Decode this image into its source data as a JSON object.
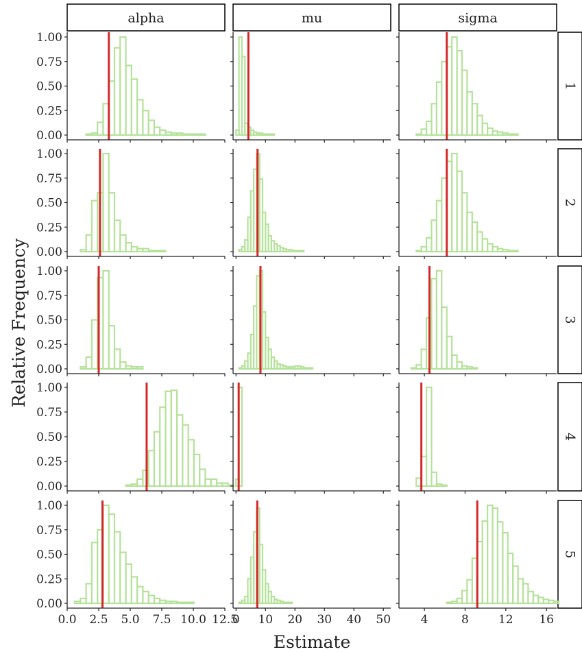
{
  "chart_data": {
    "type": "histogram-facet-grid",
    "xlabel": "Estimate",
    "ylabel": "Relative Frequency",
    "col_facets": [
      "alpha",
      "mu",
      "sigma"
    ],
    "row_facets": [
      "1",
      "2",
      "3",
      "4",
      "5"
    ],
    "y_ticks": [
      "0.00",
      "0.25",
      "0.50",
      "0.75",
      "1.00"
    ],
    "ylim": [
      0,
      1
    ],
    "bar_color": "#b5e29a",
    "line_color": "#d62728",
    "x_axes": [
      {
        "xlim": [
          0,
          12.5
        ],
        "ticks": [
          0,
          2.5,
          5,
          7.5,
          10,
          12.5
        ],
        "labels": [
          "0.0",
          "2.5",
          "5.0",
          "7.5",
          "10.0",
          "12.5"
        ]
      },
      {
        "xlim": [
          -1,
          52.5
        ],
        "ticks": [
          0,
          10,
          20,
          30,
          40,
          50
        ],
        "labels": [
          "0",
          "10",
          "20",
          "30",
          "40",
          "50"
        ]
      },
      {
        "xlim": [
          1.5,
          17
        ],
        "ticks": [
          4,
          8,
          12,
          16
        ],
        "labels": [
          "4",
          "8",
          "12",
          "16"
        ]
      }
    ],
    "panels": [
      [
        {
          "start": 0.6,
          "width": 0.45,
          "values": [
            0.0,
            0.0,
            0.01,
            0.02,
            0.13,
            0.32,
            0.55,
            0.89,
            1.0,
            0.71,
            0.57,
            0.36,
            0.25,
            0.15,
            0.08,
            0.05,
            0.03,
            0.02,
            0.02,
            0.01,
            0.01,
            0.01,
            0.01,
            0.0,
            0.0,
            0.0
          ],
          "line": 3.3
        },
        {
          "start": 0.0,
          "width": 1.0,
          "values": [
            0.05,
            1.0,
            0.8,
            0.12,
            0.08,
            0.05,
            0.03,
            0.02,
            0.02,
            0.01,
            0.01,
            0.01,
            0.01,
            0.0,
            0.0,
            0.0,
            0.0,
            0.0,
            0.0,
            0.0,
            0.0,
            0.0,
            0.0,
            0.0,
            0.0,
            0.0,
            0.0,
            0.0,
            0.0,
            0.0,
            0.0,
            0.0,
            0.0,
            0.0,
            0.0,
            0.0,
            0.0,
            0.0,
            0.0,
            0.0,
            0.0,
            0.0,
            0.0,
            0.0,
            0.0,
            0.0,
            0.0,
            0.0,
            0.0,
            0.0
          ],
          "line": 4.2
        },
        {
          "start": 2.2,
          "width": 0.5,
          "values": [
            0.0,
            0.0,
            0.01,
            0.06,
            0.14,
            0.32,
            0.54,
            0.75,
            0.9,
            1.0,
            0.86,
            0.66,
            0.44,
            0.32,
            0.2,
            0.12,
            0.07,
            0.04,
            0.03,
            0.02,
            0.01,
            0.01,
            0.0,
            0.0,
            0.0,
            0.0,
            0.0,
            0.0
          ],
          "line": 6.2
        }
      ],
      [
        {
          "start": 0.6,
          "width": 0.45,
          "values": [
            0.0,
            0.02,
            0.17,
            0.52,
            0.6,
            1.0,
            0.6,
            0.32,
            0.17,
            0.09,
            0.05,
            0.03,
            0.03,
            0.01,
            0.01,
            0.01,
            0.0,
            0.0,
            0.0,
            0.0,
            0.0,
            0.0,
            0.0,
            0.0,
            0.0,
            0.0
          ],
          "line": 2.6
        },
        {
          "start": 0.0,
          "width": 1.0,
          "values": [
            0.0,
            0.02,
            0.05,
            0.12,
            0.35,
            0.62,
            0.84,
            1.0,
            0.74,
            0.4,
            0.28,
            0.16,
            0.11,
            0.08,
            0.06,
            0.04,
            0.03,
            0.02,
            0.02,
            0.01,
            0.01,
            0.01,
            0.01,
            0.0,
            0.0,
            0.0,
            0.0,
            0.0,
            0.0,
            0.0,
            0.0,
            0.0,
            0.0,
            0.0,
            0.0,
            0.0,
            0.0,
            0.0,
            0.0,
            0.0,
            0.0,
            0.0,
            0.0,
            0.0,
            0.0,
            0.0,
            0.0,
            0.0,
            0.0,
            0.0
          ],
          "line": 7.3
        },
        {
          "start": 2.2,
          "width": 0.5,
          "values": [
            0.0,
            0.0,
            0.01,
            0.05,
            0.14,
            0.32,
            0.52,
            0.75,
            0.92,
            1.0,
            0.82,
            0.6,
            0.4,
            0.3,
            0.2,
            0.13,
            0.08,
            0.05,
            0.03,
            0.02,
            0.01,
            0.01,
            0.0,
            0.0,
            0.0,
            0.0,
            0.0,
            0.0
          ],
          "line": 6.2
        }
      ],
      [
        {
          "start": 0.6,
          "width": 0.45,
          "values": [
            0.0,
            0.02,
            0.12,
            0.5,
            0.93,
            1.0,
            0.44,
            0.2,
            0.07,
            0.03,
            0.02,
            0.02,
            0.0,
            0.0,
            0.0,
            0.0,
            0.0,
            0.0,
            0.0,
            0.0,
            0.0,
            0.0,
            0.0,
            0.0,
            0.0,
            0.0
          ],
          "line": 2.5
        },
        {
          "start": 0.0,
          "width": 1.0,
          "values": [
            0.0,
            0.01,
            0.03,
            0.08,
            0.16,
            0.35,
            0.64,
            0.95,
            1.0,
            0.58,
            0.32,
            0.2,
            0.12,
            0.08,
            0.05,
            0.04,
            0.03,
            0.02,
            0.02,
            0.02,
            0.03,
            0.03,
            0.02,
            0.01,
            0.01,
            0.01,
            0.0,
            0.0,
            0.0,
            0.0,
            0.0,
            0.0,
            0.0,
            0.0,
            0.0,
            0.0,
            0.0,
            0.0,
            0.0,
            0.0,
            0.0,
            0.0,
            0.0,
            0.0,
            0.0,
            0.0,
            0.0,
            0.0,
            0.0,
            0.0
          ],
          "line": 8.3
        },
        {
          "start": 2.2,
          "width": 0.5,
          "values": [
            0.0,
            0.01,
            0.04,
            0.2,
            0.52,
            0.92,
            1.0,
            0.63,
            0.33,
            0.14,
            0.07,
            0.03,
            0.02,
            0.01,
            0.0,
            0.0,
            0.0,
            0.0,
            0.0,
            0.0,
            0.0,
            0.0,
            0.0,
            0.0,
            0.0,
            0.0,
            0.0,
            0.0
          ],
          "line": 4.5
        }
      ],
      [
        {
          "start": 0.6,
          "width": 0.45,
          "values": [
            0.0,
            0.0,
            0.0,
            0.0,
            0.0,
            0.0,
            0.0,
            0.0,
            0.0,
            0.01,
            0.02,
            0.07,
            0.16,
            0.36,
            0.55,
            0.8,
            0.96,
            0.97,
            0.72,
            0.62,
            0.47,
            0.32,
            0.17,
            0.07,
            0.07,
            0.03,
            0.03,
            0.01,
            0.0,
            0.0,
            0.0,
            0.0,
            0.0
          ],
          "line": 6.3
        },
        {
          "start": 0.0,
          "width": 1.0,
          "values": [
            0.07,
            1.0,
            0.0,
            0.0,
            0.0,
            0.0,
            0.0,
            0.0,
            0.0,
            0.0,
            0.0,
            0.0,
            0.0,
            0.0,
            0.0,
            0.0,
            0.0,
            0.0,
            0.0,
            0.0,
            0.0,
            0.0,
            0.0,
            0.0,
            0.0,
            0.0,
            0.0,
            0.0,
            0.0,
            0.0,
            0.0,
            0.0,
            0.0,
            0.0,
            0.0,
            0.0,
            0.0,
            0.0,
            0.0,
            0.0,
            0.0,
            0.0,
            0.0,
            0.0,
            0.0,
            0.0,
            0.0,
            0.0,
            0.0,
            0.0
          ],
          "line": 0.9
        },
        {
          "start": 2.2,
          "width": 0.5,
          "values": [
            0.0,
            0.0,
            0.08,
            0.3,
            1.0,
            0.14,
            0.02,
            0.01,
            0.0,
            0.0,
            0.0,
            0.0,
            0.0,
            0.0,
            0.0,
            0.0,
            0.0,
            0.0,
            0.0,
            0.0,
            0.0,
            0.0,
            0.0,
            0.0,
            0.0,
            0.0,
            0.0,
            0.0
          ],
          "line": 3.7
        }
      ],
      [
        {
          "start": 0.6,
          "width": 0.45,
          "values": [
            0.02,
            0.05,
            0.2,
            0.62,
            0.75,
            1.0,
            0.91,
            0.73,
            0.52,
            0.4,
            0.27,
            0.17,
            0.12,
            0.08,
            0.05,
            0.03,
            0.02,
            0.02,
            0.01,
            0.01,
            0.01,
            0.0,
            0.0,
            0.0,
            0.0,
            0.0
          ],
          "line": 2.8
        },
        {
          "start": 0.0,
          "width": 1.0,
          "values": [
            0.0,
            0.01,
            0.03,
            0.07,
            0.25,
            0.47,
            0.73,
            0.97,
            0.6,
            0.34,
            0.2,
            0.12,
            0.07,
            0.04,
            0.03,
            0.02,
            0.01,
            0.01,
            0.01,
            0.0,
            0.0,
            0.0,
            0.0,
            0.0,
            0.0,
            0.0,
            0.0,
            0.0,
            0.0,
            0.0,
            0.0,
            0.0,
            0.0,
            0.0,
            0.0,
            0.0,
            0.0,
            0.0,
            0.0,
            0.0,
            0.0,
            0.0,
            0.0,
            0.0,
            0.0,
            0.0,
            0.0,
            0.0,
            0.0,
            0.0
          ],
          "line": 7.2
        },
        {
          "start": 2.2,
          "width": 0.5,
          "values": [
            0.0,
            0.0,
            0.0,
            0.0,
            0.0,
            0.0,
            0.0,
            0.0,
            0.01,
            0.02,
            0.05,
            0.13,
            0.24,
            0.46,
            0.63,
            0.84,
            1.0,
            0.97,
            0.83,
            0.72,
            0.51,
            0.38,
            0.25,
            0.2,
            0.12,
            0.08,
            0.06,
            0.04,
            0.03,
            0.02,
            0.0
          ],
          "line": 9.2
        }
      ]
    ]
  }
}
